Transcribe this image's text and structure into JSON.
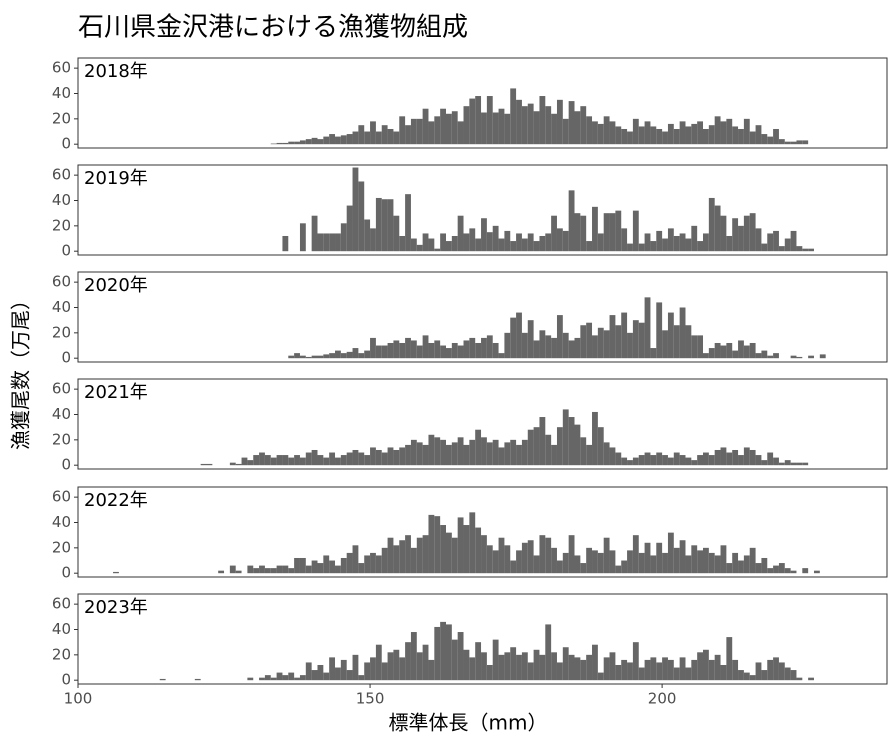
{
  "chart_data": {
    "type": "histogram",
    "title": "石川県金沢港における漁獲物組成",
    "xlabel": "標準体長（mm）",
    "ylabel": "漁獲尾数（万尾）",
    "bins": [
      100,
      101,
      102,
      103,
      104,
      105,
      106,
      107,
      108,
      109,
      110,
      111,
      112,
      113,
      114,
      115,
      116,
      117,
      118,
      119,
      120,
      121,
      122,
      123,
      124,
      125,
      126,
      127,
      128,
      129,
      130,
      131,
      132,
      133,
      134,
      135,
      136,
      137,
      138,
      139,
      140,
      141,
      142,
      143,
      144,
      145,
      146,
      147,
      148,
      149,
      150,
      151,
      152,
      153,
      154,
      155,
      156,
      157,
      158,
      159,
      160,
      161,
      162,
      163,
      164,
      165,
      166,
      167,
      168,
      169,
      170,
      171,
      172,
      173,
      174,
      175,
      176,
      177,
      178,
      179,
      180,
      181,
      182,
      183,
      184,
      185,
      186,
      187,
      188,
      189,
      190,
      191,
      192,
      193,
      194,
      195,
      196,
      197,
      198,
      199,
      200,
      201,
      202,
      203,
      204,
      205,
      206,
      207,
      208,
      209,
      210,
      211,
      212,
      213,
      214,
      215,
      216,
      217,
      218,
      219,
      220,
      221,
      222,
      223,
      224,
      225,
      226,
      227,
      228,
      229,
      230,
      231,
      232,
      233,
      234,
      235,
      236,
      237,
      238
    ],
    "xlim": [
      100,
      238.5
    ],
    "xticks": [
      100,
      150,
      200
    ],
    "ylim": [
      -3,
      68
    ],
    "yticks": [
      0,
      20,
      40,
      60
    ],
    "facet": true,
    "series": [
      {
        "name": "2018年",
        "color": "#666666",
        "values": [
          0,
          0,
          0,
          0,
          0,
          0,
          0,
          0,
          0,
          0,
          0,
          0,
          0,
          0,
          0,
          0,
          0,
          0,
          0,
          0,
          0,
          0,
          0,
          0,
          0,
          0,
          0,
          0,
          0,
          0,
          0,
          0,
          0,
          0.5,
          1,
          1,
          2,
          2,
          3,
          4,
          5,
          4,
          6,
          8,
          6,
          7,
          8,
          10,
          15,
          10,
          18,
          10,
          15,
          12,
          10,
          22,
          15,
          20,
          20,
          28,
          18,
          22,
          28,
          24,
          26,
          18,
          30,
          36,
          38,
          25,
          38,
          25,
          28,
          24,
          44,
          35,
          30,
          32,
          26,
          38,
          30,
          24,
          35,
          20,
          34,
          26,
          30,
          22,
          18,
          16,
          22,
          18,
          14,
          12,
          10,
          20,
          14,
          18,
          14,
          12,
          10,
          16,
          12,
          18,
          14,
          16,
          18,
          12,
          15,
          22,
          18,
          20,
          14,
          12,
          20,
          10,
          15,
          8,
          6,
          12,
          4,
          2,
          2,
          3,
          3,
          0,
          0,
          0,
          0,
          0,
          0,
          0,
          0,
          0,
          0,
          0,
          0,
          0
        ]
      },
      {
        "name": "2019年",
        "color": "#666666",
        "values": [
          0,
          0,
          0,
          0,
          0,
          0,
          0,
          0,
          0,
          0,
          0,
          0,
          0,
          0,
          0,
          0,
          0,
          0,
          0,
          0,
          0,
          0,
          0,
          0,
          0,
          0,
          0,
          0,
          0,
          0,
          0,
          0,
          0,
          0,
          0,
          12,
          0,
          0,
          22,
          0,
          28,
          14,
          14,
          14,
          14,
          22,
          36,
          66,
          55,
          25,
          18,
          42,
          41,
          41,
          28,
          12,
          45,
          10,
          5,
          14,
          10,
          2,
          14,
          8,
          12,
          28,
          14,
          18,
          10,
          26,
          15,
          20,
          10,
          16,
          8,
          14,
          10,
          14,
          8,
          12,
          14,
          28,
          18,
          16,
          48,
          30,
          28,
          8,
          35,
          14,
          30,
          30,
          32,
          18,
          6,
          32,
          6,
          14,
          8,
          16,
          10,
          18,
          12,
          14,
          10,
          20,
          8,
          14,
          42,
          36,
          28,
          12,
          26,
          20,
          28,
          30,
          18,
          6,
          14,
          16,
          4,
          10,
          16,
          4,
          2,
          2,
          0,
          0,
          0,
          0,
          0,
          0,
          0,
          0,
          0,
          0,
          0,
          0
        ]
      },
      {
        "name": "2020年",
        "color": "#666666",
        "values": [
          0,
          0,
          0,
          0,
          0,
          0,
          0,
          0,
          0,
          0,
          0,
          0,
          0,
          0,
          0,
          0,
          0,
          0,
          0,
          0,
          0,
          0,
          0,
          0,
          0,
          0,
          0,
          0,
          0,
          0,
          0,
          0,
          0,
          0,
          0,
          0,
          2,
          4,
          2,
          1,
          2,
          2,
          3,
          4,
          6,
          4,
          5,
          8,
          4,
          6,
          16,
          10,
          10,
          12,
          14,
          12,
          16,
          14,
          10,
          18,
          12,
          14,
          10,
          8,
          12,
          10,
          14,
          16,
          12,
          16,
          18,
          12,
          4,
          20,
          32,
          36,
          20,
          30,
          14,
          22,
          18,
          16,
          34,
          20,
          14,
          16,
          26,
          28,
          18,
          24,
          22,
          34,
          26,
          36,
          20,
          30,
          28,
          48,
          8,
          44,
          22,
          36,
          26,
          40,
          26,
          18,
          18,
          4,
          8,
          12,
          10,
          12,
          6,
          14,
          10,
          12,
          4,
          6,
          2,
          4,
          0,
          0,
          2,
          1,
          0,
          2,
          0,
          3,
          0,
          0,
          0,
          0,
          0,
          0,
          0,
          0,
          0,
          0
        ]
      },
      {
        "name": "2021年",
        "color": "#666666",
        "values": [
          0,
          0,
          0,
          0,
          0,
          0,
          0,
          0,
          0,
          0,
          0,
          0,
          0,
          0,
          0,
          0,
          0,
          0,
          0,
          0,
          0,
          1,
          1,
          0,
          0,
          0,
          2,
          1,
          6,
          4,
          8,
          10,
          8,
          6,
          8,
          8,
          6,
          8,
          6,
          10,
          12,
          8,
          6,
          10,
          6,
          8,
          10,
          12,
          10,
          8,
          14,
          12,
          10,
          14,
          12,
          14,
          16,
          20,
          18,
          16,
          24,
          22,
          20,
          16,
          18,
          22,
          16,
          20,
          28,
          22,
          18,
          20,
          14,
          18,
          20,
          16,
          20,
          28,
          30,
          38,
          24,
          16,
          30,
          44,
          38,
          32,
          22,
          16,
          42,
          30,
          18,
          14,
          10,
          6,
          4,
          6,
          8,
          10,
          8,
          10,
          8,
          6,
          10,
          8,
          6,
          4,
          8,
          10,
          8,
          12,
          14,
          10,
          12,
          8,
          14,
          12,
          8,
          4,
          10,
          6,
          2,
          4,
          2,
          2,
          2,
          0,
          0,
          0,
          0,
          0,
          0,
          0,
          0,
          0,
          0,
          0,
          0,
          0
        ]
      },
      {
        "name": "2022年",
        "color": "#666666",
        "values": [
          0,
          0,
          0,
          0,
          0,
          0,
          1,
          0,
          0,
          0,
          0,
          0,
          0,
          0,
          0,
          0,
          0,
          0,
          0,
          0,
          0,
          0,
          0,
          0,
          2,
          0,
          6,
          2,
          0,
          6,
          4,
          6,
          4,
          4,
          6,
          6,
          4,
          12,
          12,
          6,
          10,
          8,
          14,
          10,
          6,
          12,
          16,
          22,
          8,
          14,
          16,
          14,
          20,
          28,
          22,
          26,
          30,
          20,
          28,
          30,
          46,
          45,
          38,
          32,
          28,
          44,
          38,
          48,
          36,
          30,
          22,
          18,
          28,
          22,
          10,
          18,
          24,
          26,
          14,
          30,
          28,
          20,
          10,
          16,
          30,
          14,
          8,
          20,
          18,
          16,
          28,
          18,
          6,
          10,
          18,
          30,
          16,
          24,
          14,
          24,
          16,
          32,
          20,
          26,
          14,
          22,
          18,
          20,
          16,
          14,
          22,
          8,
          16,
          10,
          14,
          20,
          8,
          12,
          4,
          6,
          8,
          4,
          2,
          0,
          4,
          0,
          2,
          0,
          0,
          0,
          0,
          0,
          0,
          0,
          0,
          0,
          0,
          0
        ]
      },
      {
        "name": "2023年",
        "color": "#666666",
        "values": [
          0,
          0,
          0,
          0,
          0,
          0,
          0,
          0,
          0,
          0,
          0,
          0,
          0,
          0,
          1,
          0,
          0,
          0,
          0,
          0,
          1,
          0,
          0,
          0,
          0,
          0,
          0,
          0,
          0,
          2,
          0,
          2,
          4,
          2,
          6,
          4,
          6,
          2,
          4,
          14,
          8,
          12,
          6,
          18,
          10,
          16,
          8,
          20,
          4,
          14,
          18,
          28,
          14,
          22,
          24,
          18,
          30,
          38,
          22,
          28,
          16,
          42,
          46,
          44,
          32,
          38,
          24,
          18,
          30,
          22,
          12,
          32,
          20,
          22,
          26,
          20,
          22,
          14,
          24,
          20,
          44,
          22,
          14,
          26,
          20,
          18,
          16,
          20,
          28,
          6,
          18,
          22,
          12,
          16,
          14,
          30,
          10,
          16,
          18,
          14,
          18,
          16,
          10,
          18,
          10,
          16,
          22,
          24,
          16,
          20,
          12,
          34,
          16,
          8,
          6,
          4,
          14,
          8,
          16,
          18,
          14,
          10,
          8,
          2,
          0,
          2,
          0,
          0,
          0,
          0,
          0,
          0,
          0,
          0,
          0,
          0,
          0,
          0
        ]
      }
    ]
  }
}
